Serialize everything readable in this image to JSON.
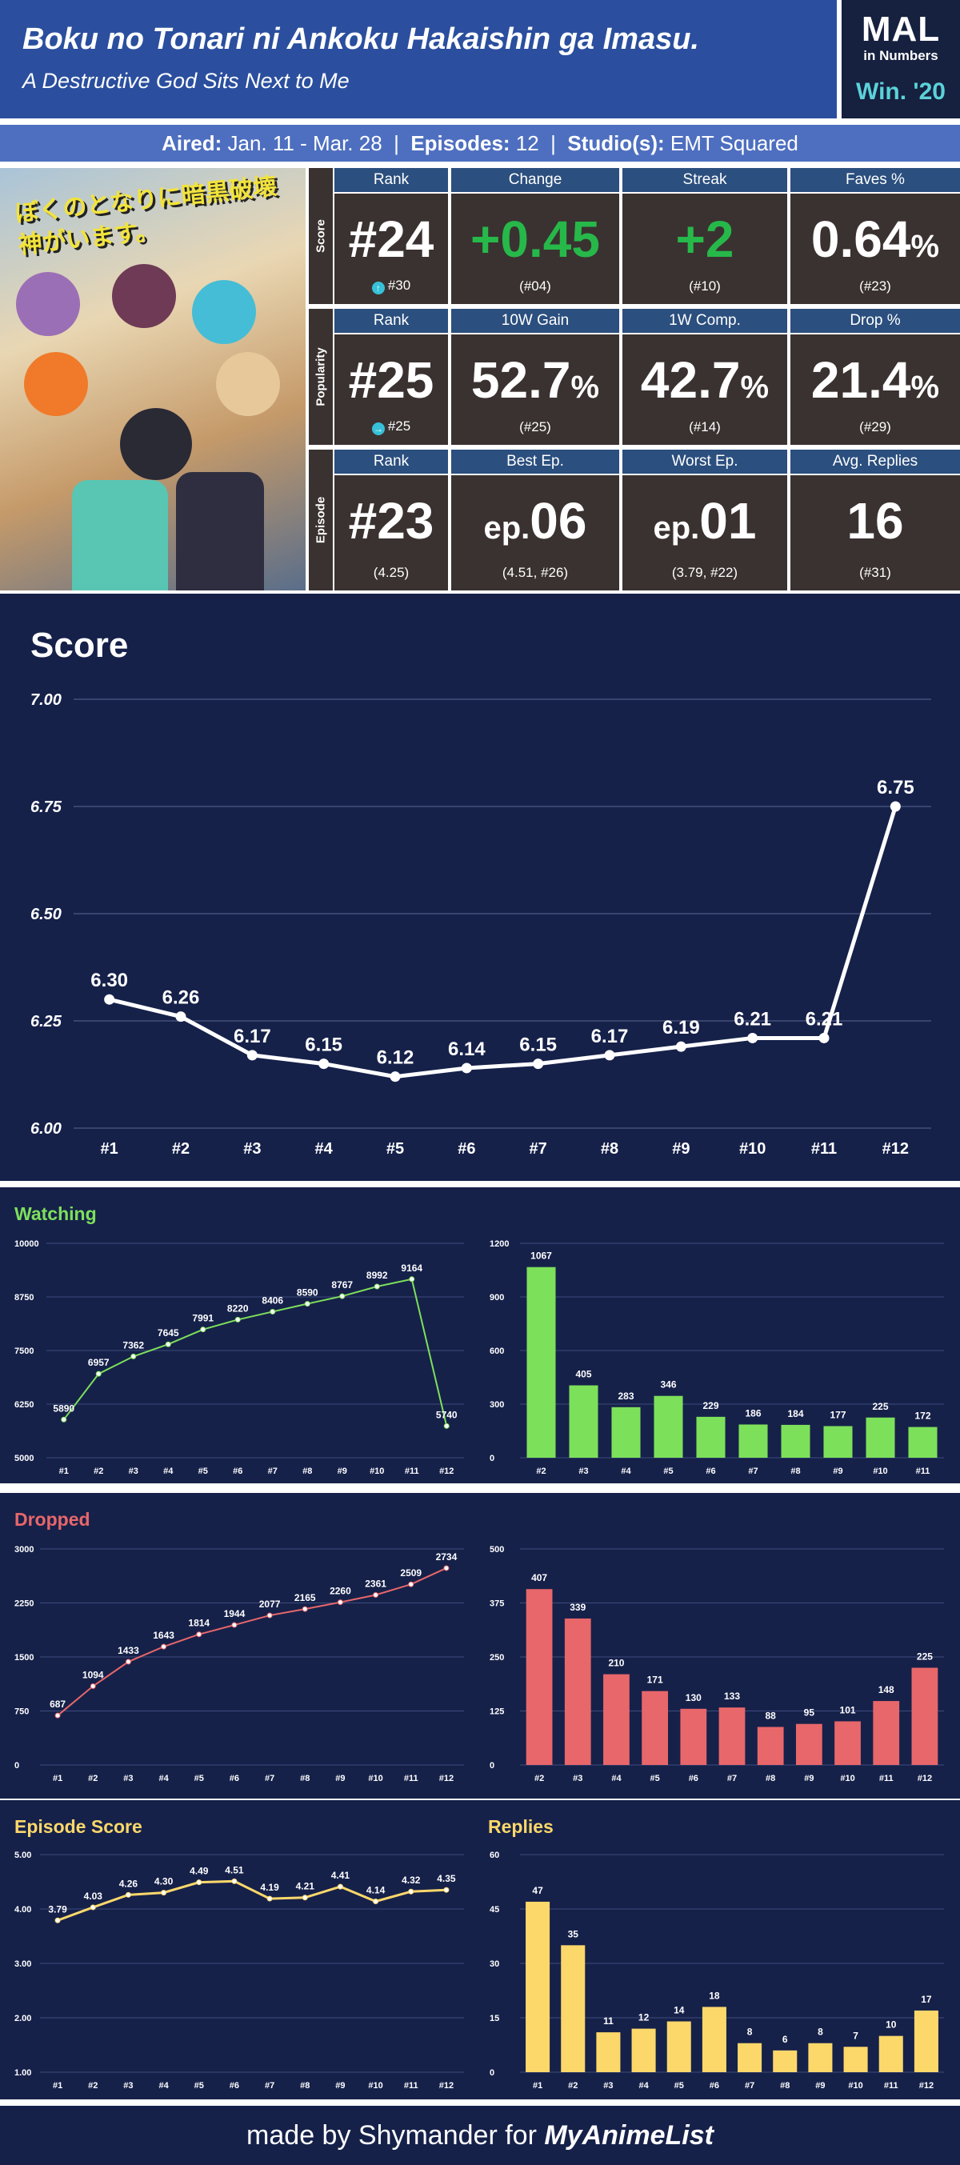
{
  "header": {
    "title": "Boku no Tonari ni Ankoku Hakaishin ga Imasu.",
    "subtitle": "A Destructive God Sits Next to Me"
  },
  "logo": {
    "line1": "MAL",
    "line2": "in Numbers",
    "line3": "Win. '20"
  },
  "info": {
    "aired_label": "Aired:",
    "aired_value": "Jan. 11 - Mar. 28",
    "episodes_label": "Episodes:",
    "episodes_value": "12",
    "studio_label": "Studio(s):",
    "studio_value": "EMT Squared"
  },
  "cover": {
    "title_art": "ぼくのとなりに暗黒破壊神がいます。"
  },
  "stats": {
    "score": {
      "side": "Score",
      "labels": [
        "Rank",
        "Change",
        "Streak",
        "Faves %"
      ],
      "rank": "#24",
      "rank_sub": "#30",
      "change": "+0.45",
      "change_sub": "(#04)",
      "streak": "+2",
      "streak_sub": "(#10)",
      "faves_num": "0.64",
      "faves_unit": "%",
      "faves_sub": "(#23)"
    },
    "popularity": {
      "side": "Popularity",
      "labels": [
        "Rank",
        "10W Gain",
        "1W Comp.",
        "Drop %"
      ],
      "rank": "#25",
      "rank_sub": "#25",
      "gain_num": "52.7",
      "gain_unit": "%",
      "gain_sub": "(#25)",
      "comp_num": "42.7",
      "comp_unit": "%",
      "comp_sub": "(#14)",
      "drop_num": "21.4",
      "drop_unit": "%",
      "drop_sub": "(#29)"
    },
    "episode": {
      "side": "Episode",
      "labels": [
        "Rank",
        "Best Ep.",
        "Worst Ep.",
        "Avg. Replies"
      ],
      "rank": "#23",
      "rank_sub": "(4.25)",
      "best_pre": "ep.",
      "best_num": "06",
      "best_sub": "(4.51, #26)",
      "worst_pre": "ep.",
      "worst_num": "01",
      "worst_sub": "(3.79, #22)",
      "replies": "16",
      "replies_sub": "(#31)"
    }
  },
  "colors": {
    "green": "#7de05a",
    "red": "#e8676a",
    "yellow": "#fcd86a",
    "panel": "#16214a"
  },
  "chart_data": [
    {
      "id": "score",
      "type": "line",
      "title": "Score",
      "categories": [
        "#1",
        "#2",
        "#3",
        "#4",
        "#5",
        "#6",
        "#7",
        "#8",
        "#9",
        "#10",
        "#11",
        "#12"
      ],
      "values": [
        6.3,
        6.26,
        6.17,
        6.15,
        6.12,
        6.14,
        6.15,
        6.17,
        6.19,
        6.21,
        6.21,
        6.75
      ],
      "labels": [
        "6.30",
        "6.26",
        "6.17",
        "6.15",
        "6.12",
        "6.14",
        "6.15",
        "6.17",
        "6.19",
        "6.21",
        "6.21",
        "6.75"
      ],
      "ylim": [
        6.0,
        7.0
      ],
      "yticks": [
        "6.00",
        "6.25",
        "6.50",
        "6.75",
        "7.00"
      ],
      "color": "#ffffff"
    },
    {
      "id": "watching-line",
      "type": "line",
      "title": "Watching",
      "categories": [
        "#1",
        "#2",
        "#3",
        "#4",
        "#5",
        "#6",
        "#7",
        "#8",
        "#9",
        "#10",
        "#11",
        "#12"
      ],
      "values": [
        5890,
        6957,
        7362,
        7645,
        7991,
        8220,
        8406,
        8590,
        8767,
        8992,
        9164,
        5740
      ],
      "labels": [
        "5890",
        "6957",
        "7362",
        "7645",
        "7991",
        "8220",
        "8406",
        "8590",
        "8767",
        "8992",
        "9164",
        "5740"
      ],
      "ylim": [
        5000,
        10000
      ],
      "yticks": [
        "5000",
        "6250",
        "7500",
        "8750",
        "10000"
      ],
      "color": "#7de05a"
    },
    {
      "id": "watching-bar",
      "type": "bar",
      "title": "",
      "categories": [
        "#2",
        "#3",
        "#4",
        "#5",
        "#6",
        "#7",
        "#8",
        "#9",
        "#10",
        "#11"
      ],
      "values": [
        1067,
        405,
        283,
        346,
        229,
        186,
        184,
        177,
        225,
        172
      ],
      "labels": [
        "1067",
        "405",
        "283",
        "346",
        "229",
        "186",
        "184",
        "177",
        "225",
        "172"
      ],
      "ylim": [
        0,
        1200
      ],
      "yticks": [
        "0",
        "300",
        "600",
        "900",
        "1200"
      ],
      "color": "#7de05a"
    },
    {
      "id": "dropped-line",
      "type": "line",
      "title": "Dropped",
      "categories": [
        "#1",
        "#2",
        "#3",
        "#4",
        "#5",
        "#6",
        "#7",
        "#8",
        "#9",
        "#10",
        "#11",
        "#12"
      ],
      "values": [
        687,
        1094,
        1433,
        1643,
        1814,
        1944,
        2077,
        2165,
        2260,
        2361,
        2509,
        2734
      ],
      "labels": [
        "687",
        "1094",
        "1433",
        "1643",
        "1814",
        "1944",
        "2077",
        "2165",
        "2260",
        "2361",
        "2509",
        "2734"
      ],
      "ylim": [
        0,
        3000
      ],
      "yticks": [
        "0",
        "750",
        "1500",
        "2250",
        "3000"
      ],
      "color": "#e8676a"
    },
    {
      "id": "dropped-bar",
      "type": "bar",
      "title": "",
      "categories": [
        "#2",
        "#3",
        "#4",
        "#5",
        "#6",
        "#7",
        "#8",
        "#9",
        "#10",
        "#11",
        "#12"
      ],
      "values": [
        407,
        339,
        210,
        171,
        130,
        133,
        88,
        95,
        101,
        148,
        225
      ],
      "labels": [
        "407",
        "339",
        "210",
        "171",
        "130",
        "133",
        "88",
        "95",
        "101",
        "148",
        "225"
      ],
      "ylim": [
        0,
        500
      ],
      "yticks": [
        "0",
        "125",
        "250",
        "375",
        "500"
      ],
      "color": "#e8676a"
    },
    {
      "id": "epscore-line",
      "type": "line",
      "title": "Episode Score",
      "categories": [
        "#1",
        "#2",
        "#3",
        "#4",
        "#5",
        "#6",
        "#7",
        "#8",
        "#9",
        "#10",
        "#11",
        "#12"
      ],
      "values": [
        3.79,
        4.03,
        4.26,
        4.3,
        4.49,
        4.51,
        4.19,
        4.21,
        4.41,
        4.14,
        4.32,
        4.35
      ],
      "labels": [
        "3.79",
        "4.03",
        "4.26",
        "4.30",
        "4.49",
        "4.51",
        "4.19",
        "4.21",
        "4.41",
        "4.14",
        "4.32",
        "4.35"
      ],
      "ylim": [
        1.0,
        5.0
      ],
      "yticks": [
        "1.00",
        "2.00",
        "3.00",
        "4.00",
        "5.00"
      ],
      "color": "#fcd86a"
    },
    {
      "id": "replies-bar",
      "type": "bar",
      "title": "Replies",
      "categories": [
        "#1",
        "#2",
        "#3",
        "#4",
        "#5",
        "#6",
        "#7",
        "#8",
        "#9",
        "#10",
        "#11",
        "#12"
      ],
      "values": [
        47,
        35,
        11,
        12,
        14,
        18,
        8,
        6,
        8,
        7,
        10,
        17
      ],
      "labels": [
        "47",
        "35",
        "11",
        "12",
        "14",
        "18",
        "8",
        "6",
        "8",
        "7",
        "10",
        "17"
      ],
      "ylim": [
        0,
        60
      ],
      "yticks": [
        "0",
        "15",
        "30",
        "45",
        "60"
      ],
      "color": "#fcd86a"
    }
  ],
  "footer": {
    "text": "made by Shymander for",
    "brand": "MyAnimeList"
  }
}
